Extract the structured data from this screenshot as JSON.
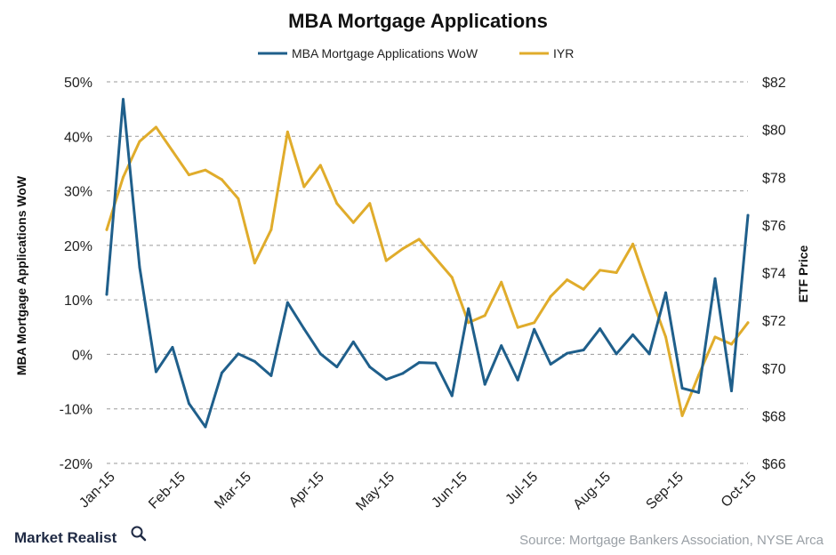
{
  "chart_data": {
    "type": "line",
    "title": "MBA Mortgage Applications",
    "source": "Source: Mortgage Bankers Association, NYSE Arca",
    "brand": "Market Realist",
    "legend_position": "top",
    "grid": true,
    "ylabel": "MBA Mortgage Applications WoW",
    "y2label": "ETF Price",
    "ylim": [
      -20,
      50
    ],
    "y2lim": [
      66,
      82
    ],
    "yticks": [
      "50%",
      "40%",
      "30%",
      "20%",
      "10%",
      "0%",
      "-10%",
      "-20%"
    ],
    "y2ticks": [
      "$82",
      "$80",
      "$78",
      "$76",
      "$74",
      "$72",
      "$70",
      "$68",
      "$66"
    ],
    "xtick_labels": [
      "Jan-15",
      "Feb-15",
      "Mar-15",
      "Apr-15",
      "May-15",
      "Jun-15",
      "Jul-15",
      "Aug-15",
      "Sep-15",
      "Oct-15"
    ],
    "x": [
      "2015-01-02",
      "2015-01-09",
      "2015-01-16",
      "2015-01-23",
      "2015-01-30",
      "2015-02-06",
      "2015-02-13",
      "2015-02-20",
      "2015-02-27",
      "2015-03-06",
      "2015-03-13",
      "2015-03-20",
      "2015-03-27",
      "2015-04-03",
      "2015-04-10",
      "2015-04-17",
      "2015-04-24",
      "2015-05-01",
      "2015-05-08",
      "2015-05-15",
      "2015-05-22",
      "2015-05-29",
      "2015-06-05",
      "2015-06-12",
      "2015-06-19",
      "2015-06-26",
      "2015-07-03",
      "2015-07-10",
      "2015-07-17",
      "2015-07-24",
      "2015-07-31",
      "2015-08-07",
      "2015-08-14",
      "2015-08-21",
      "2015-08-28",
      "2015-09-04",
      "2015-09-11",
      "2015-09-18",
      "2015-09-25",
      "2015-10-02"
    ],
    "series": [
      {
        "name": "MBA Mortgage Applications WoW",
        "axis": "left",
        "color": "#1f5f8b",
        "values": [
          11.0,
          46.8,
          16.0,
          -3.2,
          1.3,
          -9.0,
          -13.3,
          -3.4,
          0.1,
          -1.3,
          -3.9,
          9.5,
          4.7,
          0.1,
          -2.3,
          2.3,
          -2.3,
          -4.6,
          -3.5,
          -1.5,
          -1.6,
          -7.6,
          8.4,
          -5.5,
          1.6,
          -4.7,
          4.6,
          -1.8,
          0.2,
          0.8,
          4.7,
          0.1,
          3.6,
          0.1,
          11.3,
          -6.2,
          -7.0,
          13.9,
          -6.7,
          25.5
        ]
      },
      {
        "name": "IYR",
        "axis": "right",
        "color": "#e0ac2b",
        "values": [
          75.8,
          78.0,
          79.5,
          80.1,
          79.1,
          78.1,
          78.3,
          77.9,
          77.1,
          74.4,
          75.8,
          79.9,
          77.6,
          78.5,
          76.9,
          76.1,
          76.9,
          74.5,
          75.0,
          75.4,
          74.6,
          73.8,
          71.9,
          72.2,
          73.6,
          71.7,
          71.9,
          73.0,
          73.7,
          73.3,
          74.1,
          74.0,
          75.2,
          73.2,
          71.3,
          68.0,
          69.7,
          71.3,
          71.0,
          71.9
        ]
      }
    ]
  }
}
